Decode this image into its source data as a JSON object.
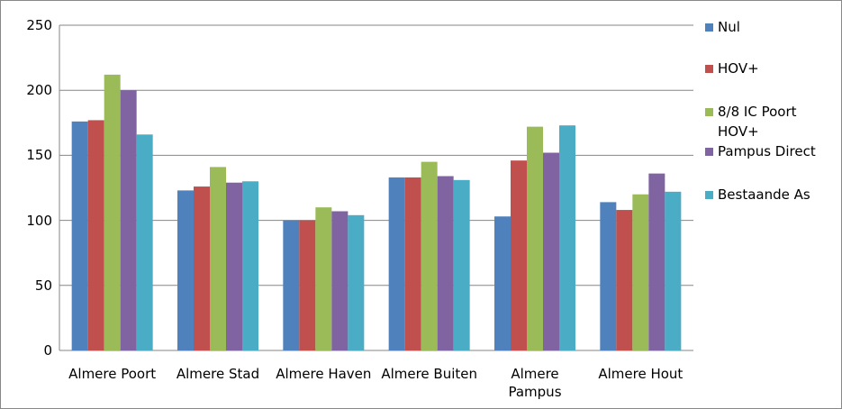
{
  "chart_data": {
    "type": "bar",
    "categories": [
      "Almere Poort",
      "Almere Stad",
      "Almere Haven",
      "Almere Buiten",
      "Almere Pampus",
      "Almere Hout"
    ],
    "series": [
      {
        "name": "Nul",
        "color": "#4f81bd",
        "values": [
          176,
          123,
          100,
          133,
          103,
          114
        ]
      },
      {
        "name": "HOV+",
        "color": "#c0504d",
        "values": [
          177,
          126,
          100,
          133,
          146,
          108
        ]
      },
      {
        "name": "8/8 IC Poort HOV+",
        "color": "#9bbb59",
        "values": [
          212,
          141,
          110,
          145,
          172,
          120
        ]
      },
      {
        "name": "Pampus Direct",
        "color": "#8064a2",
        "values": [
          200,
          129,
          107,
          134,
          152,
          136
        ]
      },
      {
        "name": "Bestaande As",
        "color": "#4bacc6",
        "values": [
          166,
          130,
          104,
          131,
          173,
          122
        ]
      }
    ],
    "ylim": [
      0,
      250
    ],
    "yticks": [
      0,
      50,
      100,
      150,
      200,
      250
    ],
    "grid": true,
    "legend": "right"
  }
}
